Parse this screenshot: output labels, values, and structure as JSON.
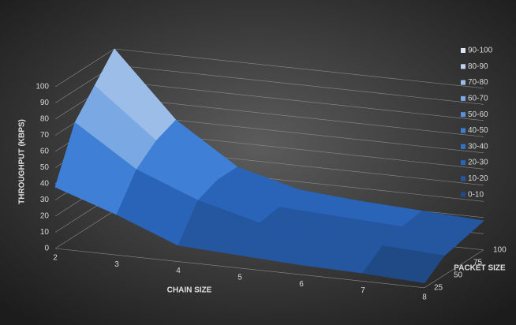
{
  "chart_data": {
    "type": "surface",
    "y_label": "THROUGHPUT (KBPS)",
    "x_label": "CHAIN SIZE",
    "z_label": "PACKET SIZE",
    "categories": [
      "2",
      "3",
      "4",
      "5",
      "6",
      "7",
      "8"
    ],
    "series": [
      {
        "name": "25",
        "values": [
          38,
          25,
          10,
          8,
          6,
          5,
          3
        ]
      },
      {
        "name": "50",
        "values": [
          70,
          45,
          30,
          20,
          15,
          14,
          12
        ]
      },
      {
        "name": "75",
        "values": [
          85,
          55,
          35,
          22,
          20,
          18,
          15
        ]
      },
      {
        "name": "100",
        "values": [
          100,
          60,
          35,
          25,
          22,
          20,
          18
        ]
      }
    ],
    "ylim": [
      0,
      100
    ],
    "yticks": [
      0,
      10,
      20,
      30,
      40,
      50,
      60,
      70,
      80,
      90,
      100
    ],
    "legend": [
      {
        "name": "90-100",
        "range": [
          90,
          100
        ],
        "color": "#dde7f6"
      },
      {
        "name": "80-90",
        "range": [
          80,
          90
        ],
        "color": "#bdd2ef"
      },
      {
        "name": "70-80",
        "range": [
          70,
          80
        ],
        "color": "#9bbde8"
      },
      {
        "name": "60-70",
        "range": [
          60,
          70
        ],
        "color": "#7aa8e2"
      },
      {
        "name": "50-60",
        "range": [
          50,
          60
        ],
        "color": "#5a92dc"
      },
      {
        "name": "40-50",
        "range": [
          40,
          50
        ],
        "color": "#3f80d6"
      },
      {
        "name": "30-40",
        "range": [
          30,
          40
        ],
        "color": "#3472c8"
      },
      {
        "name": "20-30",
        "range": [
          20,
          30
        ],
        "color": "#2a64b8"
      },
      {
        "name": "10-20",
        "range": [
          10,
          20
        ],
        "color": "#2457a0"
      },
      {
        "name": "0-10",
        "range": [
          0,
          10
        ],
        "color": "#1f4a86"
      }
    ]
  }
}
